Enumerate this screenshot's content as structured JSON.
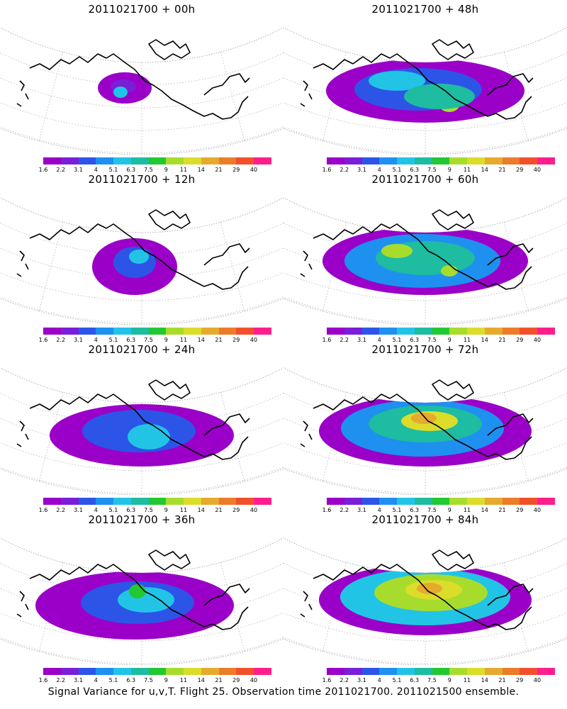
{
  "panels": [
    {
      "title": "2011021700 + 00h"
    },
    {
      "title": "2011021700 + 48h"
    },
    {
      "title": "2011021700 + 12h"
    },
    {
      "title": "2011021700 + 60h"
    },
    {
      "title": "2011021700 + 24h"
    },
    {
      "title": "2011021700 + 72h"
    },
    {
      "title": "2011021700 + 36h"
    },
    {
      "title": "2011021700 + 84h"
    }
  ],
  "colorbar": {
    "colors": [
      "#9b00c8",
      "#7a1ed8",
      "#2c55e8",
      "#1e90f0",
      "#22c4e6",
      "#1ebca0",
      "#22c832",
      "#a8dc2c",
      "#dcdc2a",
      "#e6aa2e",
      "#ec7c28",
      "#f2502c",
      "#ff1e8c"
    ],
    "labels": [
      "1.6",
      "2.2",
      "3.1",
      "4",
      "5.1",
      "6.3",
      "7.5",
      "9",
      "11",
      "14",
      "21",
      "29",
      "40"
    ]
  },
  "footer": "Signal Variance for u,v,T. Flight 25. Observation time 2011021700. 2011021500 ensemble."
}
